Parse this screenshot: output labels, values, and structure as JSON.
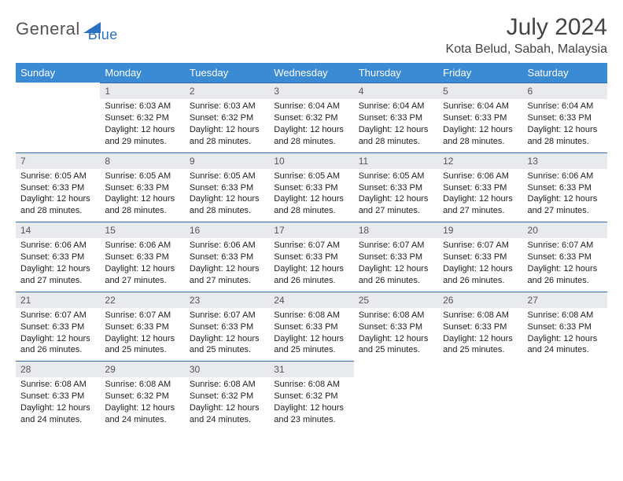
{
  "logo": {
    "word1": "General",
    "word2": "Blue"
  },
  "header": {
    "month": "July 2024",
    "location": "Kota Belud, Sabah, Malaysia"
  },
  "colors": {
    "header_bg": "#3b8bd4",
    "daynum_bg": "#e8eaed",
    "rule": "#2f6aa8",
    "brand_blue": "#2b72c4"
  },
  "weekdays": [
    "Sunday",
    "Monday",
    "Tuesday",
    "Wednesday",
    "Thursday",
    "Friday",
    "Saturday"
  ],
  "weeks": [
    [
      {
        "n": "",
        "sunrise": "",
        "sunset": "",
        "daylight": ""
      },
      {
        "n": "1",
        "sunrise": "Sunrise: 6:03 AM",
        "sunset": "Sunset: 6:32 PM",
        "daylight": "Daylight: 12 hours and 29 minutes."
      },
      {
        "n": "2",
        "sunrise": "Sunrise: 6:03 AM",
        "sunset": "Sunset: 6:32 PM",
        "daylight": "Daylight: 12 hours and 28 minutes."
      },
      {
        "n": "3",
        "sunrise": "Sunrise: 6:04 AM",
        "sunset": "Sunset: 6:32 PM",
        "daylight": "Daylight: 12 hours and 28 minutes."
      },
      {
        "n": "4",
        "sunrise": "Sunrise: 6:04 AM",
        "sunset": "Sunset: 6:33 PM",
        "daylight": "Daylight: 12 hours and 28 minutes."
      },
      {
        "n": "5",
        "sunrise": "Sunrise: 6:04 AM",
        "sunset": "Sunset: 6:33 PM",
        "daylight": "Daylight: 12 hours and 28 minutes."
      },
      {
        "n": "6",
        "sunrise": "Sunrise: 6:04 AM",
        "sunset": "Sunset: 6:33 PM",
        "daylight": "Daylight: 12 hours and 28 minutes."
      }
    ],
    [
      {
        "n": "7",
        "sunrise": "Sunrise: 6:05 AM",
        "sunset": "Sunset: 6:33 PM",
        "daylight": "Daylight: 12 hours and 28 minutes."
      },
      {
        "n": "8",
        "sunrise": "Sunrise: 6:05 AM",
        "sunset": "Sunset: 6:33 PM",
        "daylight": "Daylight: 12 hours and 28 minutes."
      },
      {
        "n": "9",
        "sunrise": "Sunrise: 6:05 AM",
        "sunset": "Sunset: 6:33 PM",
        "daylight": "Daylight: 12 hours and 28 minutes."
      },
      {
        "n": "10",
        "sunrise": "Sunrise: 6:05 AM",
        "sunset": "Sunset: 6:33 PM",
        "daylight": "Daylight: 12 hours and 28 minutes."
      },
      {
        "n": "11",
        "sunrise": "Sunrise: 6:05 AM",
        "sunset": "Sunset: 6:33 PM",
        "daylight": "Daylight: 12 hours and 27 minutes."
      },
      {
        "n": "12",
        "sunrise": "Sunrise: 6:06 AM",
        "sunset": "Sunset: 6:33 PM",
        "daylight": "Daylight: 12 hours and 27 minutes."
      },
      {
        "n": "13",
        "sunrise": "Sunrise: 6:06 AM",
        "sunset": "Sunset: 6:33 PM",
        "daylight": "Daylight: 12 hours and 27 minutes."
      }
    ],
    [
      {
        "n": "14",
        "sunrise": "Sunrise: 6:06 AM",
        "sunset": "Sunset: 6:33 PM",
        "daylight": "Daylight: 12 hours and 27 minutes."
      },
      {
        "n": "15",
        "sunrise": "Sunrise: 6:06 AM",
        "sunset": "Sunset: 6:33 PM",
        "daylight": "Daylight: 12 hours and 27 minutes."
      },
      {
        "n": "16",
        "sunrise": "Sunrise: 6:06 AM",
        "sunset": "Sunset: 6:33 PM",
        "daylight": "Daylight: 12 hours and 27 minutes."
      },
      {
        "n": "17",
        "sunrise": "Sunrise: 6:07 AM",
        "sunset": "Sunset: 6:33 PM",
        "daylight": "Daylight: 12 hours and 26 minutes."
      },
      {
        "n": "18",
        "sunrise": "Sunrise: 6:07 AM",
        "sunset": "Sunset: 6:33 PM",
        "daylight": "Daylight: 12 hours and 26 minutes."
      },
      {
        "n": "19",
        "sunrise": "Sunrise: 6:07 AM",
        "sunset": "Sunset: 6:33 PM",
        "daylight": "Daylight: 12 hours and 26 minutes."
      },
      {
        "n": "20",
        "sunrise": "Sunrise: 6:07 AM",
        "sunset": "Sunset: 6:33 PM",
        "daylight": "Daylight: 12 hours and 26 minutes."
      }
    ],
    [
      {
        "n": "21",
        "sunrise": "Sunrise: 6:07 AM",
        "sunset": "Sunset: 6:33 PM",
        "daylight": "Daylight: 12 hours and 26 minutes."
      },
      {
        "n": "22",
        "sunrise": "Sunrise: 6:07 AM",
        "sunset": "Sunset: 6:33 PM",
        "daylight": "Daylight: 12 hours and 25 minutes."
      },
      {
        "n": "23",
        "sunrise": "Sunrise: 6:07 AM",
        "sunset": "Sunset: 6:33 PM",
        "daylight": "Daylight: 12 hours and 25 minutes."
      },
      {
        "n": "24",
        "sunrise": "Sunrise: 6:08 AM",
        "sunset": "Sunset: 6:33 PM",
        "daylight": "Daylight: 12 hours and 25 minutes."
      },
      {
        "n": "25",
        "sunrise": "Sunrise: 6:08 AM",
        "sunset": "Sunset: 6:33 PM",
        "daylight": "Daylight: 12 hours and 25 minutes."
      },
      {
        "n": "26",
        "sunrise": "Sunrise: 6:08 AM",
        "sunset": "Sunset: 6:33 PM",
        "daylight": "Daylight: 12 hours and 25 minutes."
      },
      {
        "n": "27",
        "sunrise": "Sunrise: 6:08 AM",
        "sunset": "Sunset: 6:33 PM",
        "daylight": "Daylight: 12 hours and 24 minutes."
      }
    ],
    [
      {
        "n": "28",
        "sunrise": "Sunrise: 6:08 AM",
        "sunset": "Sunset: 6:33 PM",
        "daylight": "Daylight: 12 hours and 24 minutes."
      },
      {
        "n": "29",
        "sunrise": "Sunrise: 6:08 AM",
        "sunset": "Sunset: 6:32 PM",
        "daylight": "Daylight: 12 hours and 24 minutes."
      },
      {
        "n": "30",
        "sunrise": "Sunrise: 6:08 AM",
        "sunset": "Sunset: 6:32 PM",
        "daylight": "Daylight: 12 hours and 24 minutes."
      },
      {
        "n": "31",
        "sunrise": "Sunrise: 6:08 AM",
        "sunset": "Sunset: 6:32 PM",
        "daylight": "Daylight: 12 hours and 23 minutes."
      },
      {
        "n": "",
        "sunrise": "",
        "sunset": "",
        "daylight": ""
      },
      {
        "n": "",
        "sunrise": "",
        "sunset": "",
        "daylight": ""
      },
      {
        "n": "",
        "sunrise": "",
        "sunset": "",
        "daylight": ""
      }
    ]
  ]
}
